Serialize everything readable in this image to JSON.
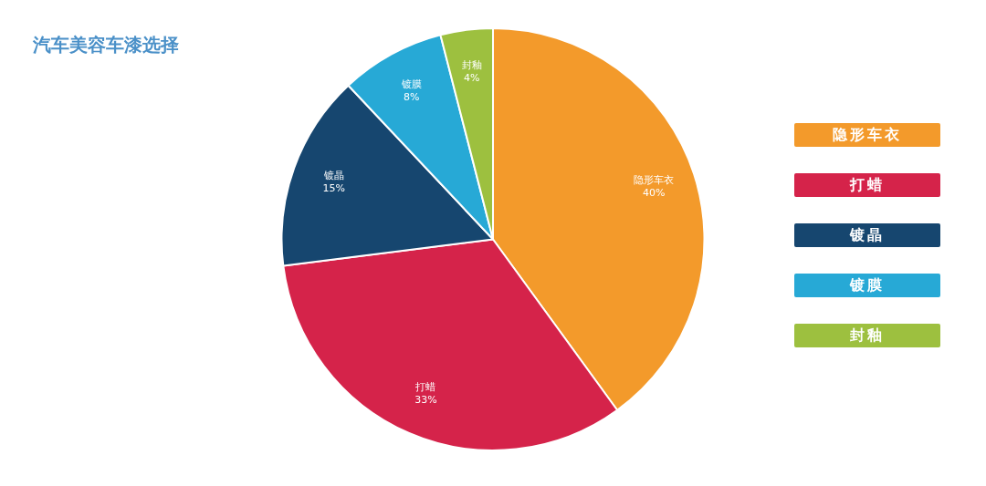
{
  "chart_data": {
    "type": "pie",
    "title": "汽车美容车漆选择",
    "categories": [
      "隐形车衣",
      "打蜡",
      "镀晶",
      "镀膜",
      "封釉"
    ],
    "values": [
      40,
      33,
      15,
      8,
      4
    ],
    "colors": [
      "#f39a2b",
      "#d5234a",
      "#16466f",
      "#27a9d6",
      "#9dc03f"
    ],
    "value_labels": [
      "40%",
      "33%",
      "15%",
      "8%",
      "4%"
    ],
    "legend": "right"
  }
}
